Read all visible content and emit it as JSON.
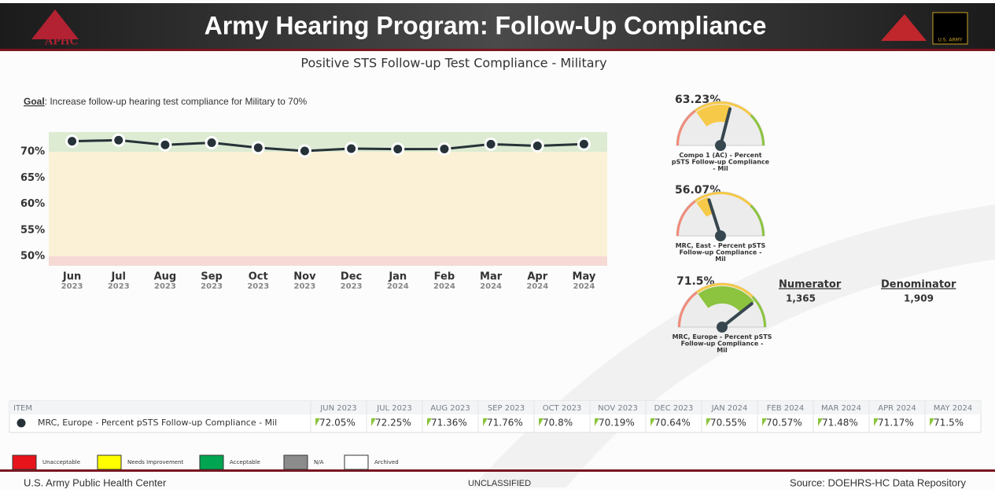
{
  "header": {
    "logo": "APHC",
    "title": "Army Hearing Program: Follow-Up Compliance",
    "badge": "U.S. ARMY"
  },
  "chart_data": {
    "type": "line",
    "title": "Positive STS Follow-up Test Compliance - Military",
    "goal_label": "Goal",
    "goal_text": ":  Increase follow-up hearing test compliance for Military to 70%",
    "categories": [
      "Jun",
      "Jul",
      "Aug",
      "Sep",
      "Oct",
      "Nov",
      "Dec",
      "Jan",
      "Feb",
      "Mar",
      "Apr",
      "May"
    ],
    "category_years": [
      "2023",
      "2023",
      "2023",
      "2023",
      "2023",
      "2023",
      "2023",
      "2024",
      "2024",
      "2024",
      "2024",
      "2024"
    ],
    "series": [
      {
        "name": "MRC, Europe - Percent pSTS Follow-up Compliance - Mil",
        "color": "#263238",
        "values": [
          72.05,
          72.25,
          71.36,
          71.76,
          70.8,
          70.19,
          70.64,
          70.55,
          70.57,
          71.48,
          71.17,
          71.5
        ]
      }
    ],
    "ylim": [
      48.2,
      73.8
    ],
    "yticks": [
      {
        "value": 50,
        "label": "50%"
      },
      {
        "value": 55,
        "label": "55%"
      },
      {
        "value": 60,
        "label": "60%"
      },
      {
        "value": 65,
        "label": "65%"
      },
      {
        "value": 70,
        "label": "70%"
      }
    ],
    "bands": [
      {
        "from": 70,
        "to": 73.8,
        "color": "#dcebd2"
      },
      {
        "from": 50,
        "to": 70,
        "color": "#fbf1d6"
      },
      {
        "from": 48.2,
        "to": 50,
        "color": "#f6d9d4"
      }
    ]
  },
  "gauges": {
    "range": [
      40,
      80
    ],
    "items": [
      {
        "value": 63.23,
        "value_label": "63.23%",
        "label": "Compo 1 (AC) - Percent pSTS Follow-up Compliance - Mil",
        "color": "#f7c948"
      },
      {
        "value": 56.07,
        "value_label": "56.07%",
        "label": "MRC, East - Percent pSTS Follow-up Compliance - Mil",
        "color": "#f7c948"
      },
      {
        "value": 71.5,
        "value_label": "71.5%",
        "label": "MRC, Europe - Percent pSTS Follow-up Compliance - Mil",
        "color": "#8cc43f"
      }
    ]
  },
  "counts": {
    "numerator_label": "Numerator",
    "numerator": "1,365",
    "denominator_label": "Denominator",
    "denominator": "1,909"
  },
  "table": {
    "columns": [
      "ITEM",
      "JUN 2023",
      "JUL 2023",
      "AUG 2023",
      "SEP 2023",
      "OCT 2023",
      "NOV 2023",
      "DEC 2023",
      "JAN 2024",
      "FEB 2024",
      "MAR 2024",
      "APR 2024",
      "MAY 2024"
    ],
    "rows": [
      [
        "MRC, Europe - Percent pSTS Follow-up Compliance - Mil",
        "72.05%",
        "72.25%",
        "71.36%",
        "71.76%",
        "70.8%",
        "70.19%",
        "70.64%",
        "70.55%",
        "70.57%",
        "71.48%",
        "71.17%",
        "71.5%"
      ]
    ]
  },
  "legend": [
    {
      "label": "Unacceptable",
      "color": "#e8141b"
    },
    {
      "label": "Needs Improvement",
      "color": "#ffff00"
    },
    {
      "label": "Acceptable",
      "color": "#00a651"
    },
    {
      "label": "N/A",
      "color": "#8c8c8c"
    },
    {
      "label": "Archived",
      "color": "#ffffff"
    }
  ],
  "footer": {
    "left": "U.S. Army Public Health Center",
    "center": "UNCLASSIFIED",
    "right": "Source:  DOEHRS-HC Data Repository"
  }
}
